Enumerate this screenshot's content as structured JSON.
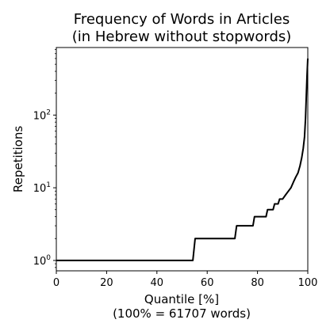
{
  "chart_data": {
    "type": "line",
    "title_line1": "Frequency of Words in Articles",
    "title_line2": "(in Hebrew without stopwords)",
    "xlabel_line1": "Quantile [%]",
    "xlabel_line2": "(100% = 61707 words)",
    "ylabel": "Repetitions",
    "xlim": [
      0,
      100
    ],
    "ylim": [
      0.72,
      850
    ],
    "yscale": "log",
    "grid": false,
    "x_ticks": [
      {
        "value": 0,
        "label": "0"
      },
      {
        "value": 20,
        "label": "20"
      },
      {
        "value": 40,
        "label": "40"
      },
      {
        "value": 60,
        "label": "60"
      },
      {
        "value": 80,
        "label": "80"
      },
      {
        "value": 100,
        "label": "100"
      }
    ],
    "y_ticks": [
      {
        "value": 1,
        "base": "10",
        "exp": "0"
      },
      {
        "value": 10,
        "base": "10",
        "exp": "1"
      },
      {
        "value": 100,
        "base": "10",
        "exp": "2"
      }
    ],
    "series": [
      {
        "color": "#000000",
        "x": [
          0,
          54.3,
          55.2,
          71.0,
          71.7,
          78.2,
          78.8,
          83.4,
          84.0,
          86.2,
          86.8,
          88.2,
          88.8,
          90.0,
          91.2,
          92.3,
          93.3,
          94.3,
          95.2,
          96.1,
          96.9,
          97.6,
          98.2,
          98.7,
          99.1,
          99.4,
          99.7,
          100.0
        ],
        "y": [
          1,
          1,
          2,
          2,
          3,
          3,
          4,
          4,
          5,
          5,
          6,
          6,
          7,
          7,
          8,
          9,
          10,
          12,
          14,
          16,
          20,
          26,
          35,
          50,
          90,
          180,
          350,
          600
        ]
      }
    ]
  }
}
